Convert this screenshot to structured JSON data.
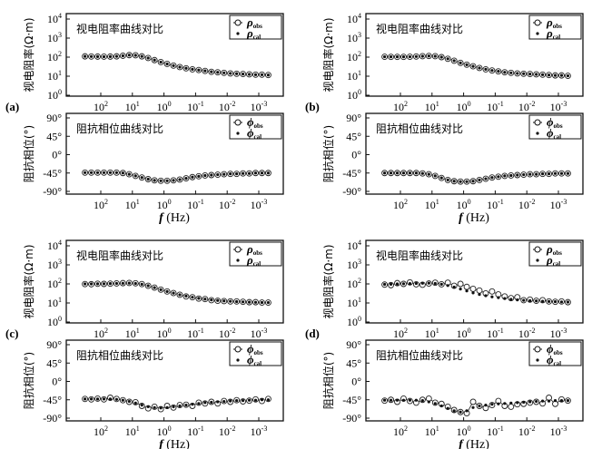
{
  "chart_data": {
    "type": "scatter",
    "x_label": "f (Hz)",
    "x_scale": "log",
    "x_reversed": true,
    "x_ticks": [
      "10^2",
      "10^1",
      "10^0",
      "10^-1",
      "10^-2",
      "10^-3"
    ],
    "log10_frequency": [
      2.5,
      2.3,
      2.1,
      1.9,
      1.7,
      1.5,
      1.3,
      1.1,
      0.9,
      0.7,
      0.5,
      0.3,
      0.1,
      -0.1,
      -0.3,
      -0.5,
      -0.7,
      -0.9,
      -1.1,
      -1.3,
      -1.5,
      -1.7,
      -1.9,
      -2.1,
      -2.3,
      -2.5,
      -2.7,
      -2.9,
      -3.1,
      -3.3
    ],
    "rho_axis": {
      "label": "视电阻率(Ω·m)",
      "title": "视电阻率曲线对比",
      "scale": "log",
      "ylim": [
        1,
        10000
      ],
      "ticks": [
        "10^0",
        "10^1",
        "10^2",
        "10^3",
        "10^4"
      ]
    },
    "phase_axis": {
      "label": "阻抗相位(°)",
      "title": "阻抗相位曲线对比",
      "ylim": [
        -90,
        90
      ],
      "ticks": [
        "90°",
        "45°",
        "0°",
        "-45°",
        "-90°"
      ]
    },
    "legend": {
      "rho_obs": "ρ",
      "rho_obs_sub": "obs",
      "rho_cal": "ρ",
      "rho_cal_sub": "cal",
      "phi_obs": "ϕ",
      "phi_obs_sub": "obs",
      "phi_cal": "ϕ",
      "phi_cal_sub": "cal",
      "placement": "top-right"
    },
    "panels": [
      {
        "label": "(a)",
        "rho_obs": [
          110,
          108,
          107,
          106,
          107,
          110,
          118,
          128,
          125,
          110,
          90,
          70,
          55,
          44,
          36,
          30,
          26,
          23,
          21,
          19,
          17,
          16,
          15,
          14,
          13.5,
          13,
          12.5,
          12,
          12,
          11.5
        ],
        "rho_cal": [
          110,
          108,
          107,
          106,
          107,
          110,
          118,
          128,
          125,
          110,
          90,
          70,
          55,
          44,
          36,
          30,
          26,
          23,
          21,
          19,
          17,
          16,
          15,
          14,
          13.5,
          13,
          12.5,
          12,
          12,
          11.5
        ],
        "phi_obs": [
          -44,
          -44,
          -44,
          -44,
          -44,
          -44,
          -45,
          -48,
          -52,
          -56,
          -60,
          -63,
          -64,
          -64,
          -63,
          -61,
          -58,
          -55,
          -53,
          -51,
          -50,
          -49,
          -48,
          -47,
          -47,
          -46,
          -46,
          -45,
          -45,
          -45
        ],
        "phi_cal": [
          -44,
          -44,
          -44,
          -44,
          -44,
          -44,
          -45,
          -48,
          -52,
          -56,
          -60,
          -63,
          -64,
          -64,
          -63,
          -61,
          -58,
          -55,
          -53,
          -51,
          -50,
          -49,
          -48,
          -47,
          -47,
          -46,
          -46,
          -45,
          -45,
          -45
        ]
      },
      {
        "label": "(b)",
        "rho_obs": [
          105,
          104,
          104,
          104,
          105,
          108,
          112,
          115,
          112,
          100,
          82,
          65,
          50,
          40,
          33,
          27,
          23,
          20,
          18,
          16,
          15,
          14,
          13.5,
          13,
          12.5,
          12,
          11.5,
          11,
          11,
          10.5
        ],
        "rho_cal": [
          105,
          104,
          104,
          104,
          105,
          108,
          112,
          115,
          112,
          100,
          82,
          65,
          50,
          40,
          33,
          27,
          23,
          20,
          18,
          16,
          15,
          14,
          13.5,
          13,
          12.5,
          12,
          11.5,
          11,
          11,
          10.5
        ],
        "phi_obs": [
          -45,
          -45,
          -45,
          -45,
          -45,
          -45,
          -46,
          -48,
          -52,
          -57,
          -62,
          -65,
          -66,
          -66,
          -65,
          -62,
          -59,
          -56,
          -54,
          -52,
          -51,
          -50,
          -49,
          -48,
          -48,
          -47,
          -47,
          -46,
          -46,
          -46
        ],
        "phi_cal": [
          -45,
          -45,
          -45,
          -45,
          -45,
          -45,
          -46,
          -48,
          -52,
          -57,
          -62,
          -65,
          -66,
          -66,
          -65,
          -62,
          -59,
          -56,
          -54,
          -52,
          -51,
          -50,
          -49,
          -48,
          -48,
          -47,
          -47,
          -46,
          -46,
          -46
        ]
      },
      {
        "label": "(c)",
        "rho_obs": [
          98,
          96,
          102,
          100,
          104,
          106,
          110,
          112,
          108,
          98,
          80,
          64,
          50,
          40,
          33,
          27,
          22,
          20,
          17,
          16,
          14,
          13,
          12.5,
          12,
          12,
          11.5,
          11,
          11,
          10.5,
          10.5
        ],
        "rho_cal": [
          100,
          100,
          101,
          102,
          104,
          106,
          108,
          110,
          106,
          96,
          80,
          64,
          50,
          40,
          33,
          27,
          23,
          20,
          17.5,
          16,
          14.5,
          13.5,
          12.8,
          12.2,
          11.8,
          11.4,
          11,
          10.8,
          10.6,
          10.5
        ],
        "phi_obs": [
          -43,
          -44,
          -42,
          -44,
          -40,
          -43,
          -46,
          -50,
          -51,
          -60,
          -66,
          -62,
          -68,
          -60,
          -64,
          -58,
          -57,
          -60,
          -52,
          -54,
          -50,
          -54,
          -48,
          -50,
          -46,
          -49,
          -47,
          -44,
          -48,
          -43
        ],
        "phi_cal": [
          -43,
          -43,
          -43,
          -43,
          -43,
          -44,
          -46,
          -49,
          -53,
          -58,
          -62,
          -64,
          -65,
          -64,
          -62,
          -60,
          -58,
          -56,
          -54,
          -52,
          -51,
          -50,
          -49,
          -48,
          -47,
          -47,
          -46,
          -46,
          -45,
          -45
        ]
      },
      {
        "label": "(d)",
        "rho_obs": [
          92,
          86,
          110,
          100,
          120,
          95,
          90,
          105,
          115,
          95,
          115,
          80,
          100,
          70,
          55,
          45,
          32,
          40,
          28,
          22,
          18,
          20,
          14,
          15,
          13,
          14,
          12,
          11.5,
          12,
          11
        ],
        "rho_cal": [
          95,
          96,
          100,
          102,
          104,
          106,
          108,
          110,
          106,
          96,
          82,
          68,
          54,
          43,
          34,
          28,
          24,
          21,
          19,
          17,
          15.5,
          14.5,
          13.8,
          13.2,
          12.8,
          12.4,
          12,
          11.7,
          11.4,
          11.2
        ],
        "phi_obs": [
          -47,
          -45,
          -50,
          -42,
          -48,
          -52,
          -45,
          -42,
          -52,
          -55,
          -62,
          -70,
          -75,
          -78,
          -50,
          -60,
          -65,
          -58,
          -48,
          -60,
          -62,
          -56,
          -55,
          -52,
          -50,
          -54,
          -40,
          -55,
          -44,
          -47
        ],
        "phi_cal": [
          -46,
          -46,
          -46,
          -46,
          -46,
          -46,
          -47,
          -50,
          -54,
          -60,
          -66,
          -72,
          -75,
          -72,
          -64,
          -60,
          -58,
          -56,
          -55,
          -54,
          -53,
          -52,
          -51,
          -50,
          -49,
          -48,
          -48,
          -47,
          -47,
          -47
        ]
      }
    ]
  }
}
